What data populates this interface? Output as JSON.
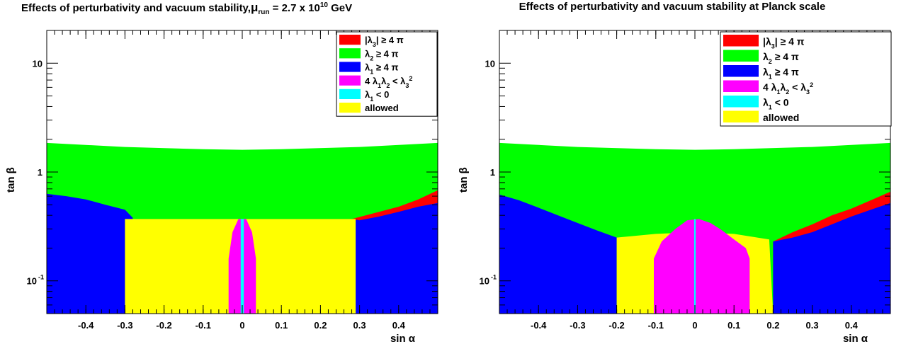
{
  "chart_data": [
    {
      "type": "heatmap",
      "title_parts": {
        "prefix": "Effects of perturbativity and vacuum stability,",
        "mu": "μ",
        "mu_sub": "run",
        "equals": "= 2.7 x 10",
        "exponent": "10",
        "unit": "GeV"
      },
      "xlabel": "sin α",
      "ylabel": "tan β",
      "xlim": [
        -0.5,
        0.5
      ],
      "ylim": [
        0.05,
        20
      ],
      "yscale": "log",
      "xticks": [
        "-0.4",
        "-0.3",
        "-0.2",
        "-0.1",
        "0",
        "0.1",
        "0.2",
        "0.3",
        "0.4"
      ],
      "yticks": {
        "tick_1": "1",
        "tick_10": "10",
        "tick_01_base": "10",
        "tick_01_exp": "-1"
      },
      "legend_position": "top-right",
      "legend": [
        {
          "label_parts": [
            "|λ",
            "3",
            "| ≥ 4 π"
          ],
          "color": "#ff0000"
        },
        {
          "label_parts": [
            "λ",
            "2",
            " ≥ 4 π"
          ],
          "color": "#00ff00"
        },
        {
          "label_parts": [
            "λ",
            "1",
            " ≥ 4 π"
          ],
          "color": "#0000ff"
        },
        {
          "label_parts": [
            " 4 λ",
            "1",
            "λ",
            "2",
            " < λ",
            "3",
            "2"
          ],
          "color": "#ff00ff"
        },
        {
          "label_parts": [
            "λ",
            "1",
            " < 0"
          ],
          "color": "#00ffff"
        },
        {
          "label_parts": [
            "allowed"
          ],
          "color": "#ffff00"
        }
      ],
      "regions": {
        "green_top_boundary": [
          [
            -0.5,
            1.85
          ],
          [
            -0.3,
            1.7
          ],
          [
            -0.1,
            1.62
          ],
          [
            0,
            1.6
          ],
          [
            0.1,
            1.62
          ],
          [
            0.3,
            1.7
          ],
          [
            0.5,
            1.85
          ]
        ],
        "blue_left_boundary": [
          [
            -0.5,
            0.63
          ],
          [
            -0.45,
            0.6
          ],
          [
            -0.4,
            0.56
          ],
          [
            -0.35,
            0.5
          ],
          [
            -0.3,
            0.45
          ],
          [
            -0.28,
            0.38
          ]
        ],
        "blue_right_boundary": [
          [
            0.5,
            0.52
          ],
          [
            0.45,
            0.48
          ],
          [
            0.4,
            0.43
          ],
          [
            0.35,
            0.39
          ],
          [
            0.3,
            0.36
          ],
          [
            0.28,
            0.37
          ]
        ],
        "red_upper_boundary": [
          [
            0.28,
            0.37
          ],
          [
            0.35,
            0.43
          ],
          [
            0.4,
            0.48
          ],
          [
            0.45,
            0.56
          ],
          [
            0.5,
            0.68
          ]
        ],
        "yellow_box": {
          "x": [
            -0.3,
            0.29
          ],
          "top": 0.37
        },
        "magenta_spike": [
          [
            -0.035,
            0.05
          ],
          [
            -0.035,
            0.16
          ],
          [
            -0.025,
            0.28
          ],
          [
            -0.01,
            0.37
          ],
          [
            0.01,
            0.37
          ],
          [
            0.025,
            0.28
          ],
          [
            0.035,
            0.16
          ],
          [
            0.035,
            0.05
          ]
        ],
        "cyan_strip": {
          "x": [
            -0.004,
            0.004
          ],
          "top": 0.37
        }
      }
    },
    {
      "type": "heatmap",
      "title": "Effects of perturbativity and vacuum stability at Planck scale",
      "xlabel": "sin α",
      "ylabel": "tan β",
      "xlim": [
        -0.5,
        0.5
      ],
      "ylim": [
        0.05,
        20
      ],
      "yscale": "log",
      "xticks": [
        "-0.4",
        "-0.3",
        "-0.2",
        "-0.1",
        "0",
        "0.1",
        "0.2",
        "0.3",
        "0.4"
      ],
      "yticks": {
        "tick_1": "1",
        "tick_10": "10",
        "tick_01_base": "10",
        "tick_01_exp": "-1"
      },
      "legend_position": "top-right",
      "legend": [
        {
          "label_parts": [
            "|λ",
            "3",
            "| ≥ 4 π"
          ],
          "color": "#ff0000"
        },
        {
          "label_parts": [
            "λ",
            "2",
            " ≥ 4 π"
          ],
          "color": "#00ff00"
        },
        {
          "label_parts": [
            "λ",
            "1",
            " ≥ 4 π"
          ],
          "color": "#0000ff"
        },
        {
          "label_parts": [
            " 4 λ",
            "1",
            "λ",
            "2",
            " < λ",
            "3",
            "2"
          ],
          "color": "#ff00ff"
        },
        {
          "label_parts": [
            "λ",
            "1",
            " < 0"
          ],
          "color": "#00ffff"
        },
        {
          "label_parts": [
            "allowed"
          ],
          "color": "#ffff00"
        }
      ],
      "regions": {
        "green_top_boundary": [
          [
            -0.5,
            1.85
          ],
          [
            -0.3,
            1.7
          ],
          [
            -0.1,
            1.62
          ],
          [
            0,
            1.6
          ],
          [
            0.1,
            1.62
          ],
          [
            0.3,
            1.7
          ],
          [
            0.5,
            1.85
          ]
        ],
        "blue_left_boundary": [
          [
            -0.5,
            0.62
          ],
          [
            -0.45,
            0.55
          ],
          [
            -0.4,
            0.47
          ],
          [
            -0.35,
            0.4
          ],
          [
            -0.3,
            0.34
          ],
          [
            -0.25,
            0.29
          ],
          [
            -0.2,
            0.25
          ]
        ],
        "blue_right_boundary": [
          [
            0.5,
            0.52
          ],
          [
            0.45,
            0.45
          ],
          [
            0.4,
            0.39
          ],
          [
            0.35,
            0.33
          ],
          [
            0.3,
            0.28
          ],
          [
            0.25,
            0.25
          ],
          [
            0.2,
            0.23
          ]
        ],
        "red_upper_boundary": [
          [
            0.2,
            0.23
          ],
          [
            0.25,
            0.28
          ],
          [
            0.3,
            0.33
          ],
          [
            0.35,
            0.4
          ],
          [
            0.4,
            0.46
          ],
          [
            0.45,
            0.55
          ],
          [
            0.5,
            0.66
          ]
        ],
        "yellow_region": [
          [
            -0.2,
            0.05
          ],
          [
            -0.2,
            0.25
          ],
          [
            -0.1,
            0.27
          ],
          [
            0.0,
            0.28
          ],
          [
            0.1,
            0.27
          ],
          [
            0.19,
            0.24
          ],
          [
            0.2,
            0.05
          ]
        ],
        "magenta_region": [
          [
            -0.105,
            0.05
          ],
          [
            -0.105,
            0.16
          ],
          [
            -0.085,
            0.23
          ],
          [
            -0.05,
            0.3
          ],
          [
            -0.02,
            0.36
          ],
          [
            0.01,
            0.37
          ],
          [
            0.04,
            0.34
          ],
          [
            0.07,
            0.29
          ],
          [
            0.1,
            0.24
          ],
          [
            0.13,
            0.2
          ],
          [
            0.14,
            0.16
          ],
          [
            0.14,
            0.05
          ]
        ],
        "cyan_strip": {
          "x": [
            -0.002,
            0.002
          ],
          "top": 0.37
        }
      }
    }
  ]
}
